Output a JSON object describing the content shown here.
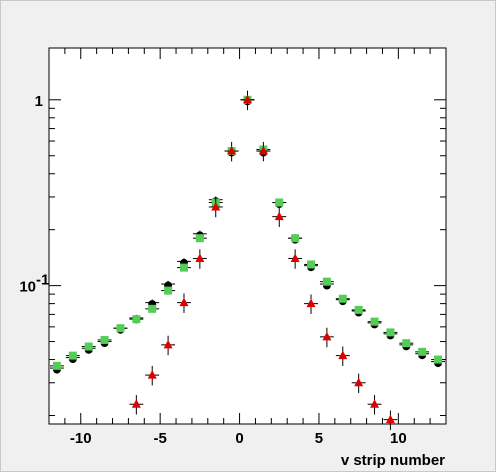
{
  "chart_data": {
    "type": "scatter",
    "title": "",
    "xlabel": "v strip number",
    "ylabel": "",
    "xlim": [
      -12,
      13
    ],
    "ylim": [
      0.018,
      1.9
    ],
    "yscale": "log",
    "grid": false,
    "legend": "none",
    "x_ticks": [
      {
        "value": -10,
        "label": "-10"
      },
      {
        "value": -5,
        "label": "-5"
      },
      {
        "value": 0,
        "label": "0"
      },
      {
        "value": 5,
        "label": "5"
      },
      {
        "value": 10,
        "label": "10"
      }
    ],
    "y_ticks": [
      {
        "value": 0.1,
        "label": "10",
        "exponent": "-1"
      },
      {
        "value": 1,
        "label": "1",
        "exponent": ""
      }
    ],
    "series": [
      {
        "marker": "circle",
        "color": "#000000",
        "x": [
          -11.5,
          -10.5,
          -9.5,
          -8.5,
          -7.5,
          -6.5,
          -5.5,
          -4.5,
          -3.5,
          -2.5,
          -1.5,
          -0.5,
          0.5,
          1.5,
          2.5,
          3.5,
          4.5,
          5.5,
          6.5,
          7.5,
          8.5,
          9.5,
          10.5,
          11.5,
          12.5
        ],
        "y": [
          0.036,
          0.041,
          0.046,
          0.05,
          0.059,
          0.067,
          0.081,
          0.102,
          0.135,
          0.19,
          0.29,
          0.53,
          1.0,
          0.53,
          0.28,
          0.18,
          0.128,
          0.102,
          0.084,
          0.073,
          0.063,
          0.055,
          0.048,
          0.043,
          0.039
        ]
      },
      {
        "marker": "square",
        "color": "#55cc55",
        "x": [
          -11.5,
          -10.5,
          -9.5,
          -8.5,
          -7.5,
          -6.5,
          -5.5,
          -4.5,
          -3.5,
          -2.5,
          -1.5,
          -0.5,
          0.5,
          1.5,
          2.5,
          3.5,
          4.5,
          5.5,
          6.5,
          7.5,
          8.5,
          9.5,
          10.5,
          11.5,
          12.5
        ],
        "y": [
          0.037,
          0.042,
          0.047,
          0.051,
          0.059,
          0.066,
          0.075,
          0.094,
          0.125,
          0.18,
          0.28,
          0.53,
          1.0,
          0.54,
          0.28,
          0.18,
          0.13,
          0.105,
          0.085,
          0.074,
          0.064,
          0.056,
          0.049,
          0.044,
          0.04
        ]
      },
      {
        "marker": "triangle",
        "color": "#dd0000",
        "x": [
          -6.5,
          -5.5,
          -4.5,
          -3.5,
          -2.5,
          -1.5,
          -0.5,
          0.5,
          1.5,
          2.5,
          3.5,
          4.5,
          5.5,
          6.5,
          7.5,
          8.5,
          9.5
        ],
        "y": [
          0.023,
          0.033,
          0.048,
          0.081,
          0.14,
          0.265,
          0.53,
          1.0,
          0.53,
          0.235,
          0.14,
          0.08,
          0.053,
          0.042,
          0.03,
          0.023,
          0.019
        ]
      }
    ]
  }
}
